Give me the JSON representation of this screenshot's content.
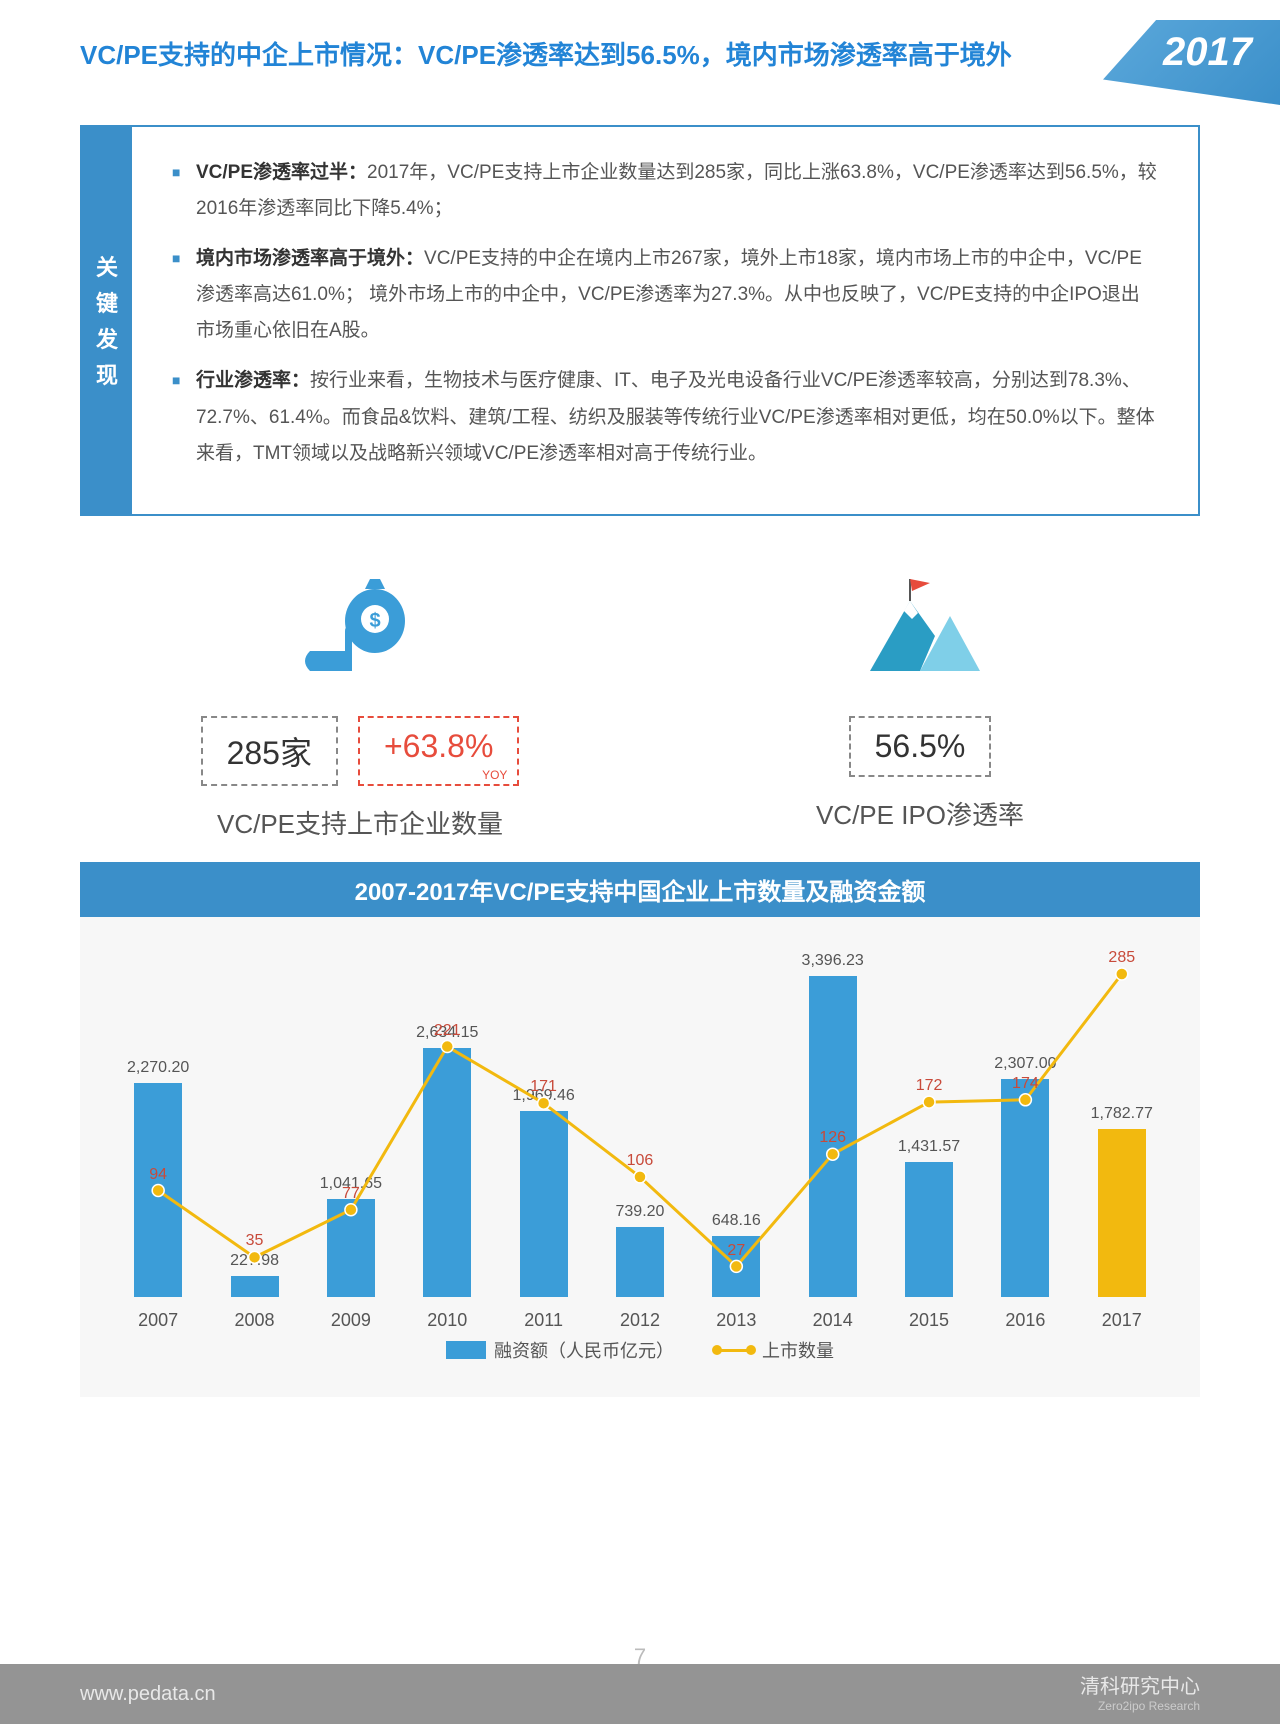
{
  "header": {
    "title": "VC/PE支持的中企上市情况：VC/PE渗透率达到56.5%，境内市场渗透率高于境外",
    "year": "2017"
  },
  "findings": {
    "label": "关键发现",
    "items": [
      {
        "bold": "VC/PE渗透率过半：",
        "rest": "2017年，VC/PE支持上市企业数量达到285家，同比上涨63.8%，VC/PE渗透率达到56.5%，较2016年渗透率同比下降5.4%；"
      },
      {
        "bold": "境内市场渗透率高于境外：",
        "rest": "VC/PE支持的中企在境内上市267家，境外上市18家，境内市场上市的中企中，VC/PE渗透率高达61.0%； 境外市场上市的中企中，VC/PE渗透率为27.3%。从中也反映了，VC/PE支持的中企IPO退出市场重心依旧在A股。"
      },
      {
        "bold": "行业渗透率：",
        "rest": "按行业来看，生物技术与医疗健康、IT、电子及光电设备行业VC/PE渗透率较高，分别达到78.3%、72.7%、61.4%。而食品&饮料、建筑/工程、纺织及服装等传统行业VC/PE渗透率相对更低，均在50.0%以下。整体来看，TMT领域以及战略新兴领域VC/PE渗透率相对高于传统行业。"
      }
    ]
  },
  "stats": {
    "left": {
      "value1": "285家",
      "value2": "+63.8%",
      "yoy": "YOY",
      "caption": "VC/PE支持上市企业数量"
    },
    "right": {
      "value": "56.5%",
      "caption": "VC/PE IPO渗透率"
    }
  },
  "chart": {
    "title": "2007-2017年VC/PE支持中国企业上市数量及融资金额",
    "bar_color": "#3b9dd8",
    "highlight_color": "#f2b90f",
    "line_color": "#f2b90f",
    "marker_color": "#f2b90f",
    "line_label_color": "#c84a3a",
    "background": "#f7f7f7",
    "years": [
      "2007",
      "2008",
      "2009",
      "2010",
      "2011",
      "2012",
      "2013",
      "2014",
      "2015",
      "2016",
      "2017"
    ],
    "financing": [
      2270.2,
      227.98,
      1041.65,
      2634.15,
      1969.46,
      739.2,
      648.16,
      3396.23,
      1431.57,
      2307.0,
      1782.77
    ],
    "financing_labels": [
      "2,270.20",
      "227.98",
      "1,041.65",
      "2,634.15",
      "1,969.46",
      "739.20",
      "648.16",
      "3,396.23",
      "1,431.57",
      "2,307.00",
      "1,782.77"
    ],
    "counts": [
      94,
      35,
      77,
      221,
      171,
      106,
      27,
      126,
      172,
      174,
      285
    ],
    "highlight_index": 10,
    "y_max_bar": 3600,
    "y_max_line": 300,
    "legend": {
      "bar": "融资额（人民币亿元）",
      "line": "上市数量"
    }
  },
  "footer": {
    "url": "www.pedata.cn",
    "page": "7",
    "org": "清科研究中心",
    "org_en": "Zero2ipo Research"
  }
}
